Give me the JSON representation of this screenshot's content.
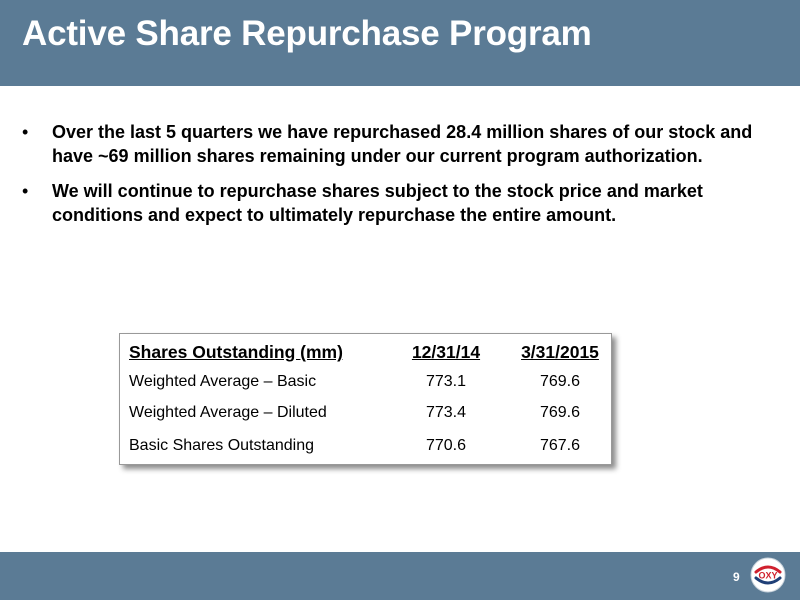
{
  "header": {
    "title": "Active Share Repurchase Program"
  },
  "bullets": [
    {
      "marker": "•",
      "text": "Over the last 5 quarters we have repurchased 28.4 million shares of our stock and have ~69 million shares remaining under our current program authorization."
    },
    {
      "marker": "•",
      "text": "We will continue to repurchase shares subject to the stock price and market conditions and expect to ultimately repurchase the entire amount."
    }
  ],
  "table": {
    "headers": [
      "Shares Outstanding (mm)",
      "12/31/14",
      "3/31/2015"
    ],
    "rows": [
      [
        "Weighted Average – Basic",
        "773.1",
        "769.6"
      ],
      [
        "Weighted Average – Diluted",
        "773.4",
        "769.6"
      ],
      [
        "Basic Shares Outstanding",
        "770.6",
        "767.6"
      ]
    ]
  },
  "footer": {
    "page_number": "9",
    "logo_text": "OXY"
  },
  "colors": {
    "bar": "#5b7b95",
    "logo_red": "#d0202e",
    "logo_blue": "#1f3f77"
  }
}
